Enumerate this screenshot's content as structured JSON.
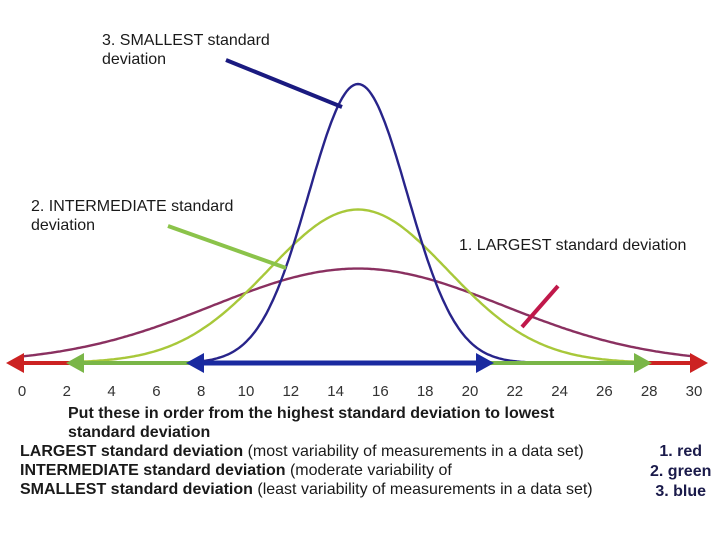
{
  "callouts": {
    "smallest": "3. SMALLEST standard deviation",
    "intermediate": "2. INTERMEDIATE standard deviation",
    "largest": "1. LARGEST standard deviation"
  },
  "axis_ticks": [
    "0",
    "2",
    "4",
    "6",
    "8",
    "10",
    "12",
    "14",
    "16",
    "18",
    "20",
    "22",
    "24",
    "26",
    "28",
    "30"
  ],
  "instructions": {
    "heading": "Put these in order from the highest standard deviation to lowest standard deviation",
    "items": [
      {
        "bold": "LARGEST standard deviation",
        "rest": " (most variability of measurements in a data set)"
      },
      {
        "bold": "INTERMEDIATE standard deviation",
        "rest": " (moderate variability of"
      },
      {
        "bold": "SMALLEST standard deviation",
        "rest": " (least variability of measurements in a data set)"
      }
    ]
  },
  "answers": [
    "1. red",
    "2. green",
    "3. blue"
  ],
  "colors": {
    "red_curve": "#8a3060",
    "green_curve": "#a8c83a",
    "blue_curve": "#28248a",
    "red_arrow": "#cc2222",
    "green_arrow": "#7ab648",
    "blue_arrow": "#1a2aa0",
    "pointer_blue": "#1a1a80",
    "pointer_green": "#8bc34a",
    "pointer_red": "#c0184a"
  },
  "chart_data": {
    "type": "line",
    "xlim": [
      0,
      30
    ],
    "series": [
      {
        "mean": 15,
        "sd": 2.2,
        "color": "#28248a"
      },
      {
        "mean": 15,
        "sd": 4,
        "color": "#a8c83a"
      },
      {
        "mean": 15,
        "sd": 6.5,
        "color": "#8a3060"
      }
    ]
  }
}
